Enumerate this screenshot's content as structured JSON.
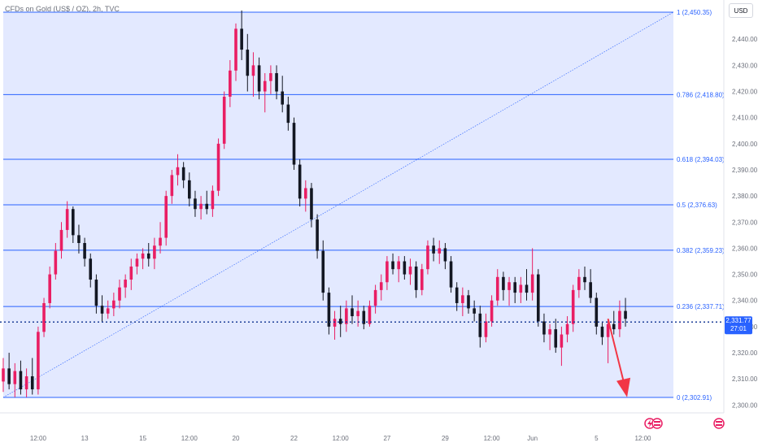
{
  "title": "CFDs on Gold (US$ / OZ), 2h, TVC",
  "currency_button": "USD",
  "current_price": "2,331.77",
  "countdown": "27:01",
  "colors": {
    "up": "#e91e63",
    "down": "#131722",
    "fib_line": "#2962ff",
    "fib_fill": "#e3e9ff",
    "price_line": "#1e3f99",
    "price_tag": "#2962ff",
    "arrow": "#f23645"
  },
  "chart_data": {
    "type": "candlestick",
    "title": "",
    "xlabel": "",
    "ylabel": "",
    "ylim": [
      2297,
      2455
    ],
    "y_ticks": [
      2300,
      2310,
      2320,
      2330,
      2340,
      2350,
      2360,
      2370,
      2380,
      2390,
      2400,
      2410,
      2420,
      2430,
      2440
    ],
    "y_tick_labels": [
      "2,300.00",
      "2,310.00",
      "2,320.00",
      "2,330.00",
      "2,340.00",
      "2,350.00",
      "2,360.00",
      "2,370.00",
      "2,380.00",
      "2,390.00",
      "2,400.00",
      "2,410.00",
      "2,420.00",
      "2,430.00",
      "2,440.00"
    ],
    "x_ticks": [
      {
        "label": "12:00",
        "bar": 6
      },
      {
        "label": "13",
        "bar": 14
      },
      {
        "label": "15",
        "bar": 24
      },
      {
        "label": "12:00",
        "bar": 32
      },
      {
        "label": "20",
        "bar": 40
      },
      {
        "label": "22",
        "bar": 50
      },
      {
        "label": "12:00",
        "bar": 58
      },
      {
        "label": "27",
        "bar": 66
      },
      {
        "label": "29",
        "bar": 76
      },
      {
        "label": "12:00",
        "bar": 84
      },
      {
        "label": "Jun",
        "bar": 91
      },
      {
        "label": "5",
        "bar": 102
      },
      {
        "label": "12:00",
        "bar": 110
      }
    ],
    "fib_levels": [
      {
        "ratio": "1",
        "price": 2450.35,
        "label": "1 (2,450.35)"
      },
      {
        "ratio": "0.786",
        "price": 2418.8,
        "label": "0.786 (2,418.80)"
      },
      {
        "ratio": "0.618",
        "price": 2394.03,
        "label": "0.618 (2,394.03)"
      },
      {
        "ratio": "0.5",
        "price": 2376.63,
        "label": "0.5 (2,376.63)"
      },
      {
        "ratio": "0.382",
        "price": 2359.23,
        "label": "0.382 (2,359.23)"
      },
      {
        "ratio": "0.236",
        "price": 2337.71,
        "label": "0.236 (2,337.71)"
      },
      {
        "ratio": "0",
        "price": 2302.91,
        "label": "0 (2,302.91)"
      }
    ],
    "current_price": 2331.77,
    "projection_arrow": {
      "from_bar": 104,
      "from_price": 2333,
      "to_bar": 107,
      "to_price": 2303
    },
    "bars": [
      {
        "o": 2309,
        "h": 2318,
        "l": 2305,
        "c": 2314
      },
      {
        "o": 2314,
        "h": 2320,
        "l": 2306,
        "c": 2308
      },
      {
        "o": 2308,
        "h": 2316,
        "l": 2303,
        "c": 2313
      },
      {
        "o": 2313,
        "h": 2317,
        "l": 2304,
        "c": 2306
      },
      {
        "o": 2306,
        "h": 2314,
        "l": 2303,
        "c": 2311
      },
      {
        "o": 2311,
        "h": 2318,
        "l": 2304,
        "c": 2306
      },
      {
        "o": 2306,
        "h": 2330,
        "l": 2304,
        "c": 2328
      },
      {
        "o": 2328,
        "h": 2341,
        "l": 2326,
        "c": 2339
      },
      {
        "o": 2339,
        "h": 2353,
        "l": 2337,
        "c": 2350
      },
      {
        "o": 2350,
        "h": 2362,
        "l": 2348,
        "c": 2359
      },
      {
        "o": 2359,
        "h": 2370,
        "l": 2356,
        "c": 2367
      },
      {
        "o": 2367,
        "h": 2378,
        "l": 2364,
        "c": 2375
      },
      {
        "o": 2375,
        "h": 2376,
        "l": 2362,
        "c": 2365
      },
      {
        "o": 2365,
        "h": 2369,
        "l": 2358,
        "c": 2362
      },
      {
        "o": 2362,
        "h": 2364,
        "l": 2353,
        "c": 2356
      },
      {
        "o": 2356,
        "h": 2358,
        "l": 2345,
        "c": 2348
      },
      {
        "o": 2348,
        "h": 2350,
        "l": 2335,
        "c": 2338
      },
      {
        "o": 2338,
        "h": 2342,
        "l": 2332,
        "c": 2335
      },
      {
        "o": 2335,
        "h": 2340,
        "l": 2333,
        "c": 2337
      },
      {
        "o": 2337,
        "h": 2343,
        "l": 2334,
        "c": 2340
      },
      {
        "o": 2340,
        "h": 2348,
        "l": 2337,
        "c": 2345
      },
      {
        "o": 2345,
        "h": 2350,
        "l": 2341,
        "c": 2348
      },
      {
        "o": 2348,
        "h": 2356,
        "l": 2344,
        "c": 2353
      },
      {
        "o": 2353,
        "h": 2358,
        "l": 2350,
        "c": 2356
      },
      {
        "o": 2356,
        "h": 2360,
        "l": 2352,
        "c": 2358
      },
      {
        "o": 2358,
        "h": 2362,
        "l": 2353,
        "c": 2356
      },
      {
        "o": 2356,
        "h": 2364,
        "l": 2352,
        "c": 2361
      },
      {
        "o": 2361,
        "h": 2370,
        "l": 2358,
        "c": 2364
      },
      {
        "o": 2364,
        "h": 2382,
        "l": 2361,
        "c": 2380
      },
      {
        "o": 2380,
        "h": 2390,
        "l": 2377,
        "c": 2388
      },
      {
        "o": 2388,
        "h": 2396,
        "l": 2384,
        "c": 2391
      },
      {
        "o": 2391,
        "h": 2393,
        "l": 2383,
        "c": 2386
      },
      {
        "o": 2386,
        "h": 2389,
        "l": 2376,
        "c": 2379
      },
      {
        "o": 2379,
        "h": 2382,
        "l": 2372,
        "c": 2375
      },
      {
        "o": 2375,
        "h": 2380,
        "l": 2371,
        "c": 2377
      },
      {
        "o": 2377,
        "h": 2382,
        "l": 2373,
        "c": 2375
      },
      {
        "o": 2375,
        "h": 2384,
        "l": 2372,
        "c": 2382
      },
      {
        "o": 2382,
        "h": 2402,
        "l": 2380,
        "c": 2400
      },
      {
        "o": 2400,
        "h": 2420,
        "l": 2398,
        "c": 2418
      },
      {
        "o": 2418,
        "h": 2432,
        "l": 2414,
        "c": 2428
      },
      {
        "o": 2428,
        "h": 2446,
        "l": 2424,
        "c": 2444
      },
      {
        "o": 2444,
        "h": 2451,
        "l": 2432,
        "c": 2436
      },
      {
        "o": 2436,
        "h": 2442,
        "l": 2420,
        "c": 2426
      },
      {
        "o": 2426,
        "h": 2435,
        "l": 2418,
        "c": 2430
      },
      {
        "o": 2430,
        "h": 2433,
        "l": 2417,
        "c": 2420
      },
      {
        "o": 2420,
        "h": 2427,
        "l": 2412,
        "c": 2424
      },
      {
        "o": 2424,
        "h": 2430,
        "l": 2419,
        "c": 2427
      },
      {
        "o": 2427,
        "h": 2430,
        "l": 2417,
        "c": 2420
      },
      {
        "o": 2420,
        "h": 2426,
        "l": 2412,
        "c": 2415
      },
      {
        "o": 2415,
        "h": 2418,
        "l": 2405,
        "c": 2408
      },
      {
        "o": 2408,
        "h": 2410,
        "l": 2390,
        "c": 2392
      },
      {
        "o": 2392,
        "h": 2394,
        "l": 2376,
        "c": 2379
      },
      {
        "o": 2379,
        "h": 2386,
        "l": 2374,
        "c": 2383
      },
      {
        "o": 2383,
        "h": 2385,
        "l": 2368,
        "c": 2371
      },
      {
        "o": 2371,
        "h": 2373,
        "l": 2356,
        "c": 2359
      },
      {
        "o": 2359,
        "h": 2363,
        "l": 2340,
        "c": 2343
      },
      {
        "o": 2343,
        "h": 2345,
        "l": 2327,
        "c": 2330
      },
      {
        "o": 2330,
        "h": 2336,
        "l": 2325,
        "c": 2333
      },
      {
        "o": 2333,
        "h": 2338,
        "l": 2326,
        "c": 2331
      },
      {
        "o": 2331,
        "h": 2340,
        "l": 2328,
        "c": 2337
      },
      {
        "o": 2337,
        "h": 2342,
        "l": 2331,
        "c": 2334
      },
      {
        "o": 2334,
        "h": 2340,
        "l": 2330,
        "c": 2336
      },
      {
        "o": 2336,
        "h": 2338,
        "l": 2329,
        "c": 2331
      },
      {
        "o": 2331,
        "h": 2340,
        "l": 2330,
        "c": 2338
      },
      {
        "o": 2338,
        "h": 2346,
        "l": 2335,
        "c": 2344
      },
      {
        "o": 2344,
        "h": 2350,
        "l": 2340,
        "c": 2347
      },
      {
        "o": 2347,
        "h": 2357,
        "l": 2344,
        "c": 2355
      },
      {
        "o": 2355,
        "h": 2358,
        "l": 2350,
        "c": 2352
      },
      {
        "o": 2352,
        "h": 2357,
        "l": 2347,
        "c": 2355
      },
      {
        "o": 2355,
        "h": 2357,
        "l": 2348,
        "c": 2350
      },
      {
        "o": 2350,
        "h": 2356,
        "l": 2346,
        "c": 2353
      },
      {
        "o": 2353,
        "h": 2355,
        "l": 2341,
        "c": 2344
      },
      {
        "o": 2344,
        "h": 2354,
        "l": 2342,
        "c": 2352
      },
      {
        "o": 2352,
        "h": 2363,
        "l": 2350,
        "c": 2361
      },
      {
        "o": 2361,
        "h": 2364,
        "l": 2355,
        "c": 2358
      },
      {
        "o": 2358,
        "h": 2363,
        "l": 2354,
        "c": 2360
      },
      {
        "o": 2360,
        "h": 2362,
        "l": 2352,
        "c": 2355
      },
      {
        "o": 2355,
        "h": 2357,
        "l": 2343,
        "c": 2345
      },
      {
        "o": 2345,
        "h": 2347,
        "l": 2336,
        "c": 2339
      },
      {
        "o": 2339,
        "h": 2345,
        "l": 2334,
        "c": 2342
      },
      {
        "o": 2342,
        "h": 2344,
        "l": 2335,
        "c": 2337
      },
      {
        "o": 2337,
        "h": 2340,
        "l": 2332,
        "c": 2335
      },
      {
        "o": 2335,
        "h": 2338,
        "l": 2322,
        "c": 2326
      },
      {
        "o": 2326,
        "h": 2335,
        "l": 2324,
        "c": 2332
      },
      {
        "o": 2332,
        "h": 2342,
        "l": 2330,
        "c": 2340
      },
      {
        "o": 2340,
        "h": 2352,
        "l": 2338,
        "c": 2349
      },
      {
        "o": 2349,
        "h": 2351,
        "l": 2340,
        "c": 2344
      },
      {
        "o": 2344,
        "h": 2349,
        "l": 2338,
        "c": 2347
      },
      {
        "o": 2347,
        "h": 2349,
        "l": 2339,
        "c": 2343
      },
      {
        "o": 2343,
        "h": 2349,
        "l": 2339,
        "c": 2346
      },
      {
        "o": 2346,
        "h": 2352,
        "l": 2340,
        "c": 2343
      },
      {
        "o": 2343,
        "h": 2360,
        "l": 2340,
        "c": 2350
      },
      {
        "o": 2350,
        "h": 2352,
        "l": 2330,
        "c": 2332
      },
      {
        "o": 2332,
        "h": 2335,
        "l": 2324,
        "c": 2327
      },
      {
        "o": 2327,
        "h": 2331,
        "l": 2321,
        "c": 2329
      },
      {
        "o": 2329,
        "h": 2333,
        "l": 2320,
        "c": 2322
      },
      {
        "o": 2322,
        "h": 2330,
        "l": 2315,
        "c": 2327
      },
      {
        "o": 2327,
        "h": 2334,
        "l": 2324,
        "c": 2331
      },
      {
        "o": 2331,
        "h": 2346,
        "l": 2328,
        "c": 2344
      },
      {
        "o": 2344,
        "h": 2352,
        "l": 2341,
        "c": 2349
      },
      {
        "o": 2349,
        "h": 2353,
        "l": 2344,
        "c": 2347
      },
      {
        "o": 2347,
        "h": 2352,
        "l": 2339,
        "c": 2341
      },
      {
        "o": 2341,
        "h": 2343,
        "l": 2327,
        "c": 2330
      },
      {
        "o": 2330,
        "h": 2332,
        "l": 2323,
        "c": 2326
      },
      {
        "o": 2326,
        "h": 2333,
        "l": 2316,
        "c": 2331
      },
      {
        "o": 2331,
        "h": 2336,
        "l": 2327,
        "c": 2329
      },
      {
        "o": 2329,
        "h": 2340,
        "l": 2326,
        "c": 2336
      },
      {
        "o": 2336,
        "h": 2341,
        "l": 2330,
        "c": 2333
      }
    ]
  }
}
